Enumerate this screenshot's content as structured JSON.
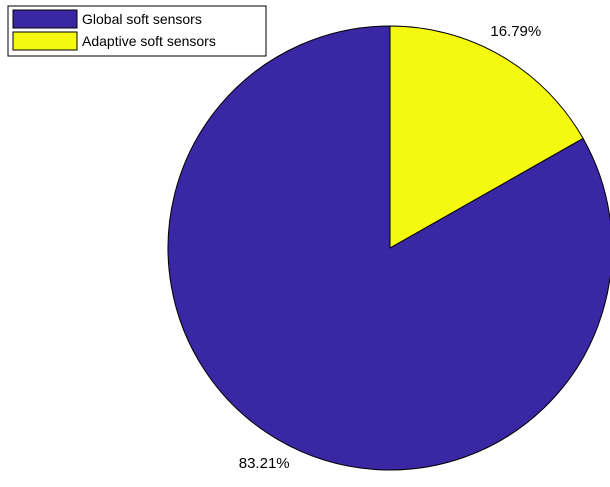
{
  "chart_data": {
    "type": "pie",
    "slices": [
      {
        "name": "Global soft sensors",
        "value": 83.21,
        "label": "83.21%",
        "color": "#3a27a3"
      },
      {
        "name": "Adaptive soft sensors",
        "value": 16.79,
        "label": "16.79%",
        "color": "#f5f80f"
      }
    ],
    "start_angle_deg": 0,
    "direction": "clockwise",
    "legend_position": "top-left",
    "edge_color": "#000000"
  }
}
